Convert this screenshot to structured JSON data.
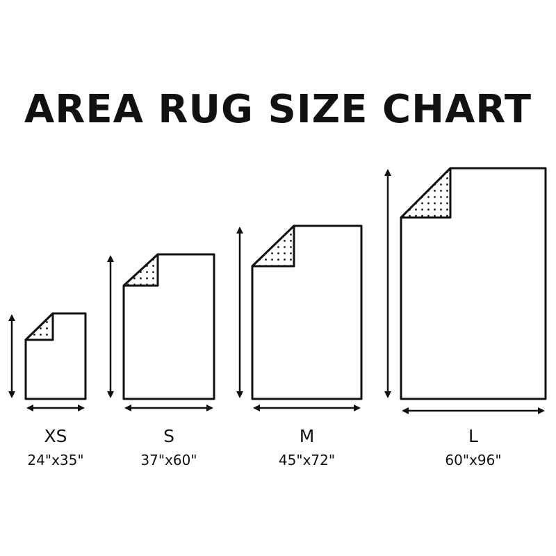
{
  "title": "AREA RUG SIZE CHART",
  "colors": {
    "ink": "#111111",
    "background": "#ffffff"
  },
  "rugs": [
    {
      "size": "XS",
      "dimensions": "24\"x35\"",
      "width_in": 24,
      "length_in": 35
    },
    {
      "size": "S",
      "dimensions": "37\"x60\"",
      "width_in": 37,
      "length_in": 60
    },
    {
      "size": "M",
      "dimensions": "45\"x72\"",
      "width_in": 45,
      "length_in": 72
    },
    {
      "size": "L",
      "dimensions": "60\"x96\"",
      "width_in": 60,
      "length_in": 96
    }
  ]
}
